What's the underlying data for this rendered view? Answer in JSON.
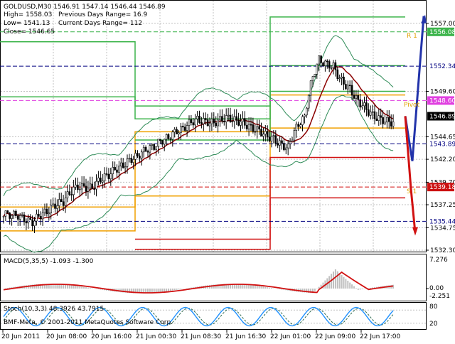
{
  "header": {
    "symbol": "GOLDUSD,M30",
    "ohlc": "1546.91 1547.14 1546.44 1546.89",
    "high": "High= 1558.03",
    "low": "Low= 1541.13",
    "close": "Close= 1546.65",
    "prev_range": "Previous Days Range= 16.9",
    "curr_range": "Current Days Range= 112"
  },
  "price_axis": [
    "1557.00",
    "1549.60",
    "1544.65",
    "1542.20",
    "1539.70",
    "1537.25",
    "1534.75",
    "1532.30"
  ],
  "price_tags": [
    {
      "label": "1556.08",
      "price": 1556.08,
      "bg": "#3cb44b",
      "fg": "#ffffff"
    },
    {
      "label": "1552.34",
      "price": 1552.34,
      "bg": "#ffffff",
      "fg": "#000080"
    },
    {
      "label": "1548.60",
      "price": 1548.6,
      "bg": "#e040e0",
      "fg": "#ffffff"
    },
    {
      "label": "1546.89",
      "price": 1546.89,
      "bg": "#000000",
      "fg": "#ffffff"
    },
    {
      "label": "1543.89",
      "price": 1543.89,
      "bg": "#ffffff",
      "fg": "#000080"
    },
    {
      "label": "1539.18",
      "price": 1539.18,
      "bg": "#cc1111",
      "fg": "#ffffff"
    },
    {
      "label": "1535.44",
      "price": 1535.44,
      "bg": "#ffffff",
      "fg": "#000080"
    }
  ],
  "level_labels": {
    "r1": "R 1",
    "pivot": "Pivot",
    "s1": "S 1"
  },
  "macd": {
    "label": "MACD(5,35,5) -1.093 -1.300",
    "axis": [
      "7.276",
      "0.00",
      "-2.251"
    ]
  },
  "stoch": {
    "label": "Stoch(10,3,3) 48.3926 43.7915",
    "axis": [
      "80",
      "20"
    ]
  },
  "copyright": "BMF-Meta, © 2001-2011 MetaQuotes Software Corp.",
  "time_axis": [
    "20 Jun 2011",
    "20 Jun 08:00",
    "20 Jun 16:00",
    "21 Jun 00:30",
    "21 Jun 08:30",
    "21 Jun 16:30",
    "22 Jun 01:00",
    "22 Jun 09:00",
    "22 Jun 17:00"
  ],
  "colors": {
    "bg": "#ffffff",
    "grid": "#c0c0c0",
    "candle": "#000000",
    "bollinger": "#2e8b57",
    "ma": "#8b0000",
    "resistance": "#3cb44b",
    "support": "#d11111",
    "pivot_box": "#f0a000",
    "forecast_up": "#2233aa",
    "forecast_down": "#d11111",
    "macd_hist": "#c0c0c0",
    "macd_signal": "#d11111",
    "stoch_main": "#1e90ff",
    "stoch_signal": "#2e6b4f"
  },
  "chart_data": {
    "type": "candlestick",
    "timeframe": "M30",
    "ylim": [
      1532.3,
      1558.0
    ],
    "candles": []
  }
}
